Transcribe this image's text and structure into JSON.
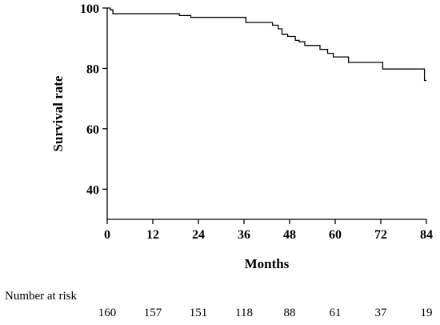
{
  "chart_data": {
    "type": "line",
    "subtype": "kaplan-meier-step",
    "xlabel": "Months",
    "ylabel": "Survival rate",
    "xlim": [
      0,
      84
    ],
    "ylim": [
      30,
      100
    ],
    "xticks": [
      0,
      12,
      24,
      36,
      48,
      60,
      72,
      84
    ],
    "xtick_labels": [
      "0",
      "12",
      "24",
      "36",
      "48",
      "60",
      "72",
      "84"
    ],
    "yticks": [
      40,
      60,
      80,
      100
    ],
    "ytick_labels": [
      "40",
      "60",
      "80",
      "100"
    ],
    "grid": false,
    "series": [
      {
        "color": "#000000",
        "x": [
          0,
          0.8,
          1.5,
          19,
          22,
          36.5,
          43.5,
          45,
          46,
          47.5,
          49.5,
          50.5,
          52,
          56,
          58,
          59.5,
          60.5,
          63.5,
          72.5,
          83.5,
          84
        ],
        "y": [
          100,
          99.4,
          98.1,
          97.5,
          96.9,
          95.2,
          94.3,
          93.1,
          91.3,
          90.6,
          89.3,
          88.8,
          87.6,
          86.3,
          85.0,
          83.8,
          83.8,
          82.0,
          79.8,
          76.0,
          76.0
        ]
      }
    ],
    "risk_table": {
      "title": "Number at risk",
      "times": [
        0,
        12,
        24,
        36,
        48,
        60,
        72,
        84
      ],
      "values": [
        "160",
        "157",
        "151",
        "118",
        "88",
        "61",
        "37",
        "19"
      ]
    }
  }
}
